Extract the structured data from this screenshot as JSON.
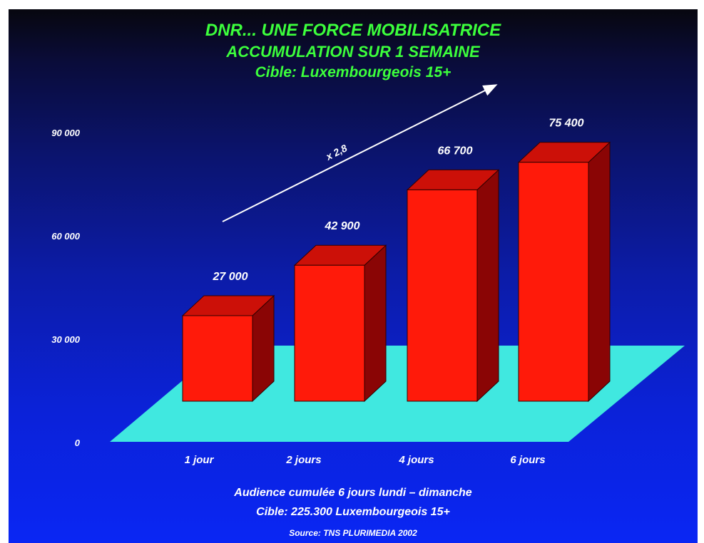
{
  "chart_data": {
    "type": "bar",
    "title": [
      "DNR... UNE FORCE MOBILISATRICE",
      "ACCUMULATION SUR 1 SEMAINE",
      "Cible: Luxembourgeois 15+"
    ],
    "categories": [
      "1 jour",
      "2 jours",
      "4 jours",
      "6 jours"
    ],
    "values": [
      27000,
      42900,
      66700,
      75400
    ],
    "value_labels": [
      "27 000",
      "42 900",
      "66 700",
      "75 400"
    ],
    "yticks": [
      0,
      30000,
      60000,
      90000
    ],
    "ytick_labels": [
      "0",
      "30 000",
      "60 000",
      "90 000"
    ],
    "ylim": [
      0,
      90000
    ],
    "annotation": "x 2,8",
    "footer": [
      "Audience cumulée 6 jours lundi – dimanche",
      "Cible: 225.300 Luxembourgeois 15+"
    ],
    "source": "Source: TNS PLURIMEDIA 2002",
    "grid": false,
    "colors": {
      "bar_front": "#ff1a0a",
      "bar_top": "#cc1008",
      "bar_side": "#8a0505",
      "floor": "#40e8e0",
      "title": "#3cff3c",
      "text": "#ffffff"
    }
  }
}
